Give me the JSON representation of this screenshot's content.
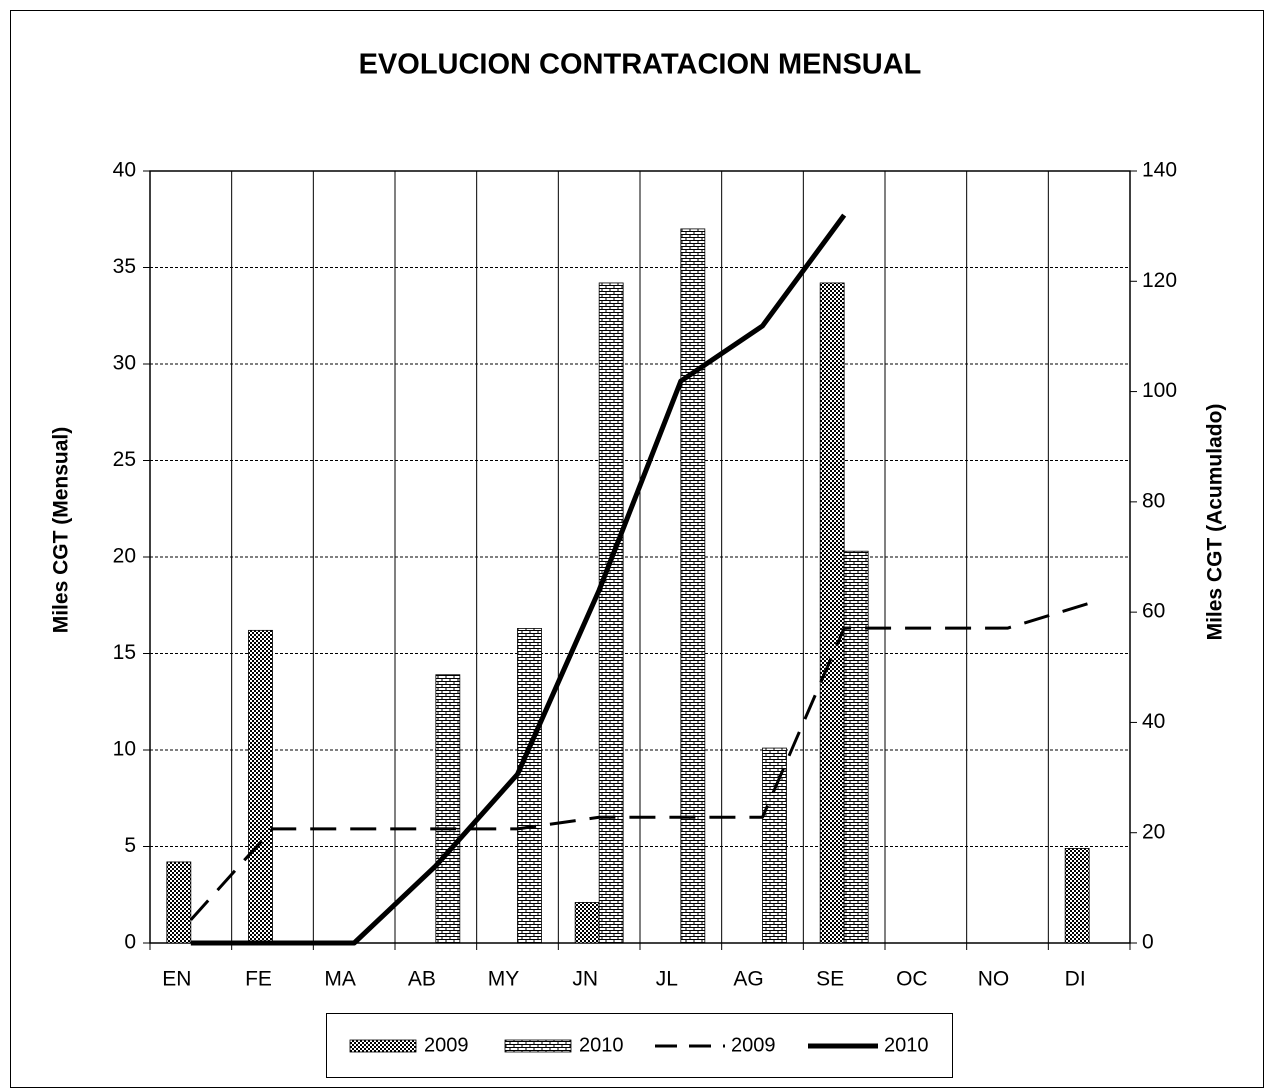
{
  "chart_data": {
    "type": "bar",
    "title": "EVOLUCION CONTRATACION MENSUAL",
    "y_label": "Miles CGT (Mensual)",
    "y2_label": "Miles CGT (Acumulado)",
    "categories": [
      "EN",
      "FE",
      "MA",
      "AB",
      "MY",
      "JN",
      "JL",
      "AG",
      "SE",
      "OC",
      "NO",
      "DI"
    ],
    "series": [
      {
        "name": "2009",
        "type": "bar",
        "pattern": "checker",
        "color": "#000000",
        "values": [
          4.2,
          16.2,
          0,
          0,
          0,
          2.1,
          0,
          0,
          34.2,
          0,
          0,
          4.9
        ]
      },
      {
        "name": "2010",
        "type": "bar",
        "pattern": "brick",
        "color": "#000000",
        "values": [
          0,
          0,
          0,
          13.9,
          16.3,
          34.2,
          37,
          10.1,
          20.3,
          null,
          null,
          null
        ]
      },
      {
        "name": "2009",
        "type": "line",
        "style": "dashed",
        "axis": "y2",
        "color": "#000000",
        "values": [
          4.2,
          20.7,
          20.7,
          20.7,
          20.7,
          22.8,
          22.8,
          22.8,
          57.1,
          57.1,
          57.1,
          61.6
        ]
      },
      {
        "name": "2010",
        "type": "line",
        "style": "solid",
        "axis": "y2",
        "color": "#000000",
        "values": [
          0,
          0,
          0,
          14.0,
          30.6,
          64.0,
          101.9,
          111.9,
          132.0,
          null,
          null,
          null
        ]
      }
    ],
    "ylim": [
      0,
      40
    ],
    "yticks": [
      0,
      5,
      10,
      15,
      20,
      25,
      30,
      35,
      40
    ],
    "y2lim": [
      0,
      140
    ],
    "y2ticks": [
      0,
      20,
      40,
      60,
      80,
      100,
      120,
      140
    ],
    "grid": true,
    "legend": "bottom"
  }
}
